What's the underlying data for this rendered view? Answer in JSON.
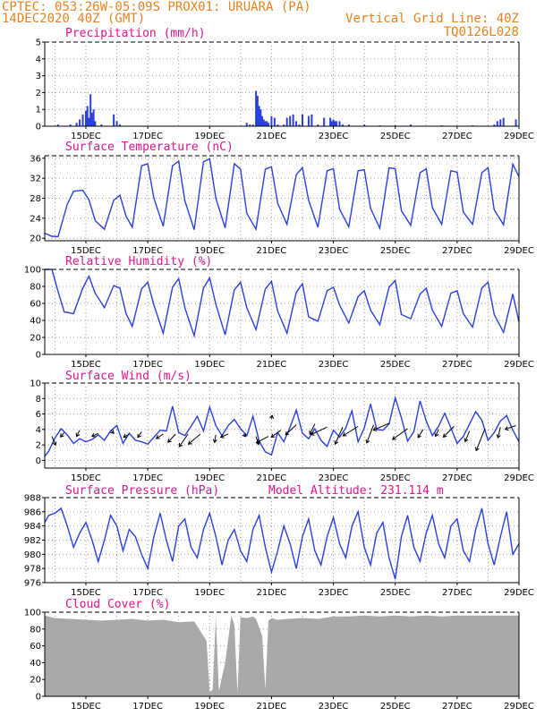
{
  "header": {
    "line1": "CPTEC:  053:26W-05:09S  PROX01: URUARA (PA)",
    "line2": "14DEC2020 40Z (GMT)",
    "right1": "Vertical Grid Line: 40Z",
    "right2": "TQ0126L028"
  },
  "colors": {
    "line": "#2a3fe0",
    "bar": "#2a3fe0",
    "cloud": "#a9a9a9",
    "title": "#e0158c",
    "header": "#e8821e",
    "arrow": "#000000"
  },
  "x_axis": {
    "day_range": [
      13.67,
      29.0
    ],
    "ticks": [
      {
        "day": 15,
        "label": "15DEC"
      },
      {
        "day": 17,
        "label": "17DEC"
      },
      {
        "day": 19,
        "label": "19DEC"
      },
      {
        "day": 21,
        "label": "21DEC"
      },
      {
        "day": 23,
        "label": "23DEC"
      },
      {
        "day": 25,
        "label": "25DEC"
      },
      {
        "day": 27,
        "label": "27DEC"
      },
      {
        "day": 29,
        "label": "29DEC"
      }
    ],
    "vertical_grid_days": [
      14,
      15,
      16,
      17,
      18,
      19,
      20,
      21,
      22,
      23,
      24,
      25,
      26,
      27,
      28,
      29
    ]
  },
  "panels": {
    "precip": {
      "title": "Precipitation (mm/h)",
      "yticks": [
        "0",
        "1",
        "2",
        "3",
        "4",
        "5"
      ],
      "ylim": [
        0,
        5
      ]
    },
    "temp": {
      "title": "Surface Temperature (nC)",
      "yticks": [
        "20",
        "24",
        "28",
        "32",
        "36"
      ],
      "ylim": [
        19.5,
        36.5
      ]
    },
    "rh": {
      "title": "Relative Humidity (%)",
      "yticks": [
        "0",
        "20",
        "40",
        "60",
        "80",
        "100"
      ],
      "ylim": [
        0,
        100
      ]
    },
    "wind": {
      "title": "Surface Wind (m/s)",
      "yticks": [
        "0",
        "2",
        "4",
        "6",
        "8",
        "10"
      ],
      "ylim": [
        -1,
        10
      ]
    },
    "pressure": {
      "title": "Surface Pressure (hPa)",
      "subtitle": "Model Altitude: 231.114 m",
      "yticks": [
        "976",
        "978",
        "980",
        "982",
        "984",
        "986",
        "988"
      ],
      "ylim": [
        976,
        988
      ]
    },
    "cloud": {
      "title": "Cloud Cover (%)",
      "yticks": [
        "0",
        "20",
        "40",
        "60",
        "80",
        "100"
      ],
      "ylim": [
        0,
        100
      ]
    }
  },
  "chart_data": [
    {
      "type": "bar",
      "title": "Precipitation (mm/h)",
      "ylim": [
        0,
        5
      ],
      "x_days": [
        14.1,
        14.5,
        14.7,
        14.8,
        14.9,
        15.0,
        15.05,
        15.1,
        15.15,
        15.2,
        15.25,
        15.3,
        15.5,
        15.9,
        16.0,
        16.1,
        20.2,
        20.3,
        20.4,
        20.5,
        20.55,
        20.6,
        20.65,
        20.7,
        20.75,
        20.8,
        20.85,
        20.9,
        21.0,
        21.1,
        21.2,
        21.4,
        21.5,
        21.6,
        21.7,
        21.8,
        21.9,
        22.0,
        22.2,
        22.3,
        22.5,
        22.7,
        22.9,
        22.95,
        23.0,
        23.05,
        23.1,
        23.2,
        23.3,
        23.5,
        24.0,
        24.5,
        25.0,
        25.5,
        26.5,
        27.5,
        28.2,
        28.3,
        28.4,
        28.5,
        28.9
      ],
      "values": [
        0.1,
        0.1,
        0.2,
        0.4,
        0.7,
        0.9,
        1.2,
        0.5,
        1.9,
        0.8,
        1.0,
        0.3,
        0.1,
        0.7,
        0.3,
        0.1,
        0.2,
        0.1,
        0.1,
        2.1,
        1.8,
        1.2,
        1.0,
        0.6,
        0.4,
        0.3,
        0.3,
        0.2,
        0.6,
        0.5,
        0.1,
        0.1,
        0.5,
        0.6,
        0.7,
        0.3,
        0.1,
        0.7,
        0.6,
        0.7,
        0.1,
        0.5,
        0.5,
        0.3,
        0.4,
        0.3,
        0.3,
        0.3,
        0.1,
        0.1,
        0.1,
        0.05,
        0.05,
        0.1,
        0.05,
        0.05,
        0.1,
        0.3,
        0.4,
        0.5,
        0.4
      ]
    },
    {
      "type": "line",
      "title": "Surface Temperature (nC)",
      "ylim": [
        19.5,
        36.5
      ],
      "x_days": [
        13.67,
        13.9,
        14.1,
        14.4,
        14.6,
        14.9,
        15.1,
        15.3,
        15.6,
        15.9,
        16.1,
        16.3,
        16.5,
        16.8,
        17.0,
        17.2,
        17.5,
        17.8,
        18.0,
        18.2,
        18.5,
        18.8,
        19.0,
        19.2,
        19.5,
        19.8,
        20.0,
        20.2,
        20.5,
        20.8,
        21.0,
        21.2,
        21.5,
        21.8,
        22.0,
        22.2,
        22.5,
        22.8,
        23.0,
        23.2,
        23.5,
        23.8,
        24.0,
        24.2,
        24.5,
        24.8,
        25.0,
        25.2,
        25.5,
        25.8,
        26.0,
        26.2,
        26.5,
        26.8,
        27.0,
        27.2,
        27.5,
        27.8,
        28.0,
        28.2,
        28.5,
        28.8,
        29.0
      ],
      "values": [
        21.0,
        20.4,
        20.3,
        26.8,
        29.4,
        29.6,
        27.7,
        23.5,
        21.8,
        27.6,
        28.6,
        24.4,
        22.2,
        34.5,
        34.9,
        28.0,
        22.4,
        34.5,
        35.4,
        27.5,
        21.7,
        35.3,
        35.9,
        28.0,
        22.1,
        34.9,
        33.8,
        25.0,
        21.8,
        33.8,
        34.3,
        27.0,
        22.8,
        32.7,
        34.1,
        27.6,
        22.2,
        33.5,
        33.9,
        25.8,
        22.3,
        33.5,
        33.7,
        26.0,
        22.0,
        34.1,
        33.9,
        25.5,
        22.6,
        33.1,
        33.9,
        26.1,
        22.8,
        33.5,
        33.2,
        25.2,
        22.8,
        33.1,
        34.1,
        25.7,
        22.7,
        34.8,
        32.3
      ]
    },
    {
      "type": "line",
      "title": "Relative Humidity (%)",
      "ylim": [
        0,
        100
      ],
      "x_days": [
        13.67,
        13.9,
        14.1,
        14.3,
        14.6,
        14.9,
        15.1,
        15.3,
        15.6,
        15.9,
        16.1,
        16.3,
        16.5,
        16.8,
        17.0,
        17.2,
        17.5,
        17.8,
        18.0,
        18.2,
        18.5,
        18.8,
        19.0,
        19.2,
        19.5,
        19.8,
        20.0,
        20.2,
        20.5,
        20.8,
        21.0,
        21.2,
        21.5,
        21.8,
        22.0,
        22.2,
        22.5,
        22.8,
        23.0,
        23.2,
        23.5,
        23.8,
        24.0,
        24.2,
        24.5,
        24.8,
        25.0,
        25.2,
        25.5,
        25.8,
        26.0,
        26.2,
        26.5,
        26.8,
        27.0,
        27.2,
        27.5,
        27.8,
        28.0,
        28.2,
        28.5,
        28.8,
        29.0
      ],
      "values": [
        100,
        100,
        74,
        50,
        48,
        78,
        92,
        72,
        55,
        81,
        78,
        48,
        33,
        77,
        85,
        58,
        25,
        79,
        89,
        55,
        22,
        78,
        90,
        59,
        23,
        76,
        85,
        55,
        29,
        77,
        86,
        51,
        25,
        73,
        83,
        44,
        39,
        75,
        79,
        58,
        37,
        68,
        75,
        52,
        35,
        79,
        87,
        47,
        42,
        71,
        78,
        52,
        33,
        72,
        75,
        48,
        32,
        78,
        85,
        47,
        26,
        71,
        38
      ]
    },
    {
      "type": "line",
      "title": "Surface Wind (m/s)",
      "ylim": [
        -1,
        10
      ],
      "x_days": [
        13.67,
        13.8,
        14.0,
        14.2,
        14.4,
        14.6,
        14.8,
        15.0,
        15.2,
        15.4,
        15.6,
        15.8,
        16.0,
        16.2,
        16.4,
        16.6,
        16.8,
        17.0,
        17.2,
        17.4,
        17.6,
        17.8,
        18.0,
        18.2,
        18.4,
        18.6,
        18.8,
        19.0,
        19.2,
        19.4,
        19.6,
        19.8,
        20.0,
        20.2,
        20.4,
        20.6,
        20.8,
        21.0,
        21.2,
        21.4,
        21.6,
        21.8,
        22.0,
        22.2,
        22.4,
        22.6,
        22.8,
        23.0,
        23.2,
        23.4,
        23.6,
        23.8,
        24.0,
        24.2,
        24.4,
        24.6,
        24.8,
        25.0,
        25.2,
        25.4,
        25.6,
        25.8,
        26.0,
        26.2,
        26.4,
        26.6,
        26.8,
        27.0,
        27.2,
        27.4,
        27.6,
        27.8,
        28.0,
        28.2,
        28.4,
        28.6,
        28.8,
        29.0
      ],
      "values": [
        0.5,
        1.2,
        2.9,
        4.1,
        3.3,
        2.2,
        2.8,
        2.4,
        2.7,
        3.3,
        2.6,
        3.8,
        4.5,
        2.2,
        3.5,
        2.6,
        2.4,
        2.1,
        3.0,
        3.9,
        3.8,
        7.0,
        3.6,
        3.2,
        4.4,
        5.7,
        3.8,
        6.9,
        4.5,
        3.2,
        4.5,
        5.3,
        4.1,
        3.2,
        5.7,
        2.5,
        1.1,
        0.7,
        3.6,
        2.4,
        4.3,
        6.5,
        3.5,
        2.8,
        4.1,
        2.6,
        1.8,
        3.9,
        3.0,
        4.2,
        6.4,
        2.4,
        4.2,
        7.3,
        4.0,
        3.9,
        4.7,
        8.1,
        5.5,
        2.5,
        3.7,
        7.7,
        5.1,
        3.2,
        4.4,
        6.1,
        4.2,
        2.2,
        3.1,
        4.7,
        6.3,
        5.2,
        2.6,
        3.6,
        5.1,
        5.8,
        3.9,
        2.4
      ]
    },
    {
      "type": "line",
      "title": "Surface Pressure (hPa)",
      "ylim": [
        976,
        988
      ],
      "x_days": [
        13.67,
        13.8,
        14.0,
        14.2,
        14.4,
        14.6,
        14.8,
        15.0,
        15.2,
        15.4,
        15.6,
        15.8,
        16.0,
        16.2,
        16.4,
        16.6,
        16.8,
        17.0,
        17.2,
        17.4,
        17.6,
        17.8,
        18.0,
        18.2,
        18.4,
        18.6,
        18.8,
        19.0,
        19.2,
        19.4,
        19.6,
        19.8,
        20.0,
        20.2,
        20.4,
        20.6,
        20.8,
        21.0,
        21.2,
        21.4,
        21.6,
        21.8,
        22.0,
        22.2,
        22.4,
        22.6,
        22.8,
        23.0,
        23.2,
        23.4,
        23.6,
        23.8,
        24.0,
        24.2,
        24.4,
        24.6,
        24.8,
        25.0,
        25.2,
        25.4,
        25.6,
        25.8,
        26.0,
        26.2,
        26.4,
        26.6,
        26.8,
        27.0,
        27.2,
        27.4,
        27.6,
        27.8,
        28.0,
        28.2,
        28.4,
        28.6,
        28.8,
        29.0
      ],
      "values": [
        984.5,
        985.5,
        985.8,
        986.5,
        984.0,
        981.0,
        983.0,
        984.5,
        982.0,
        979.0,
        982.0,
        985.5,
        984.0,
        980.5,
        983.5,
        982.5,
        980.0,
        978.0,
        982.5,
        985.8,
        982.0,
        979.0,
        984.0,
        985.0,
        981.0,
        979.5,
        983.5,
        985.8,
        982.5,
        978.5,
        982.0,
        983.5,
        980.5,
        979.0,
        983.5,
        985.5,
        981.0,
        977.5,
        980.5,
        984.0,
        981.5,
        978.0,
        982.5,
        985.0,
        980.5,
        978.5,
        982.5,
        985.2,
        981.5,
        979.5,
        984.0,
        986.0,
        981.0,
        978.5,
        983.0,
        984.5,
        979.5,
        976.5,
        982.5,
        985.5,
        981.0,
        979.0,
        983.0,
        985.5,
        981.5,
        979.5,
        984.0,
        985.0,
        980.5,
        979.0,
        983.5,
        986.5,
        981.5,
        978.5,
        982.5,
        986.0,
        980.0,
        981.5
      ]
    },
    {
      "type": "area",
      "title": "Cloud Cover (%)",
      "ylim": [
        0,
        100
      ],
      "x_days": [
        13.67,
        14.0,
        14.5,
        15.0,
        15.5,
        16.0,
        16.5,
        17.0,
        17.5,
        18.0,
        18.5,
        18.9,
        19.0,
        19.1,
        19.2,
        19.3,
        19.5,
        19.7,
        19.8,
        19.9,
        20.0,
        20.2,
        20.4,
        20.5,
        20.7,
        20.8,
        20.9,
        21.0,
        21.2,
        21.5,
        22.0,
        22.5,
        23.0,
        23.5,
        24.0,
        24.5,
        25.0,
        25.5,
        26.0,
        26.5,
        27.0,
        27.5,
        28.0,
        28.5,
        29.0
      ],
      "values": [
        96,
        93,
        92,
        91,
        90,
        91,
        92,
        90,
        91,
        88,
        89,
        66,
        5,
        8,
        95,
        6,
        40,
        96,
        85,
        4,
        94,
        93,
        95,
        92,
        72,
        8,
        90,
        93,
        91,
        92,
        93,
        92,
        95,
        95,
        96,
        95,
        96,
        95,
        96,
        95,
        96,
        96,
        96,
        96,
        96
      ]
    },
    {
      "type": "scatter",
      "title": "Surface Wind (m/s)",
      "note": "wind vectors, u/v components in m/s",
      "x_days": [
        13.9,
        14.3,
        14.8,
        15.4,
        15.8,
        16.4,
        16.8,
        17.5,
        17.9,
        18.3,
        18.7,
        19.2,
        19.6,
        20.1,
        20.5,
        20.9,
        21.0,
        21.3,
        21.8,
        22.4,
        22.8,
        23.3,
        23.8,
        24.3,
        24.8,
        25.4,
        25.9,
        26.4,
        26.9,
        27.4,
        27.9,
        28.4,
        28.9
      ],
      "y_positions": [
        3.1,
        3.6,
        3.9,
        3.5,
        3.9,
        3.4,
        3.7,
        3.4,
        3.4,
        3.4,
        3.4,
        3.3,
        3.4,
        3.4,
        3.1,
        3.1,
        5.4,
        3.9,
        4.6,
        4.7,
        4.3,
        4.3,
        4.4,
        4.6,
        4.8,
        4.1,
        4.0,
        4.0,
        4.4,
        3.8,
        4.1,
        4.3,
        4.5
      ],
      "u": [
        0.6,
        -0.6,
        -0.5,
        -1.0,
        0.5,
        -0.9,
        -0.6,
        -1.1,
        -1.2,
        -1.4,
        -1.9,
        -0.2,
        -1.2,
        0.3,
        0.4,
        -1.9,
        0.1,
        -1.5,
        -1.7,
        -0.8,
        -2.6,
        -1.2,
        -2.4,
        -1.1,
        -2.5,
        -2.4,
        -0.8,
        -0.5,
        -1.7,
        -0.7,
        -1.4,
        -0.4,
        -1.7
      ],
      "v": [
        -1.4,
        -0.7,
        -1.0,
        -0.5,
        -0.5,
        -0.5,
        -0.9,
        -0.7,
        -1.3,
        -2.0,
        -1.6,
        -1.2,
        -0.5,
        -0.4,
        -1.3,
        -1.0,
        0.5,
        -1.1,
        -1.6,
        -1.6,
        -1.2,
        -2.7,
        -1.5,
        -2.9,
        -1.1,
        -1.7,
        -1.3,
        -1.1,
        -1.7,
        -1.7,
        -3.5,
        -1.7,
        -0.6
      ]
    }
  ]
}
